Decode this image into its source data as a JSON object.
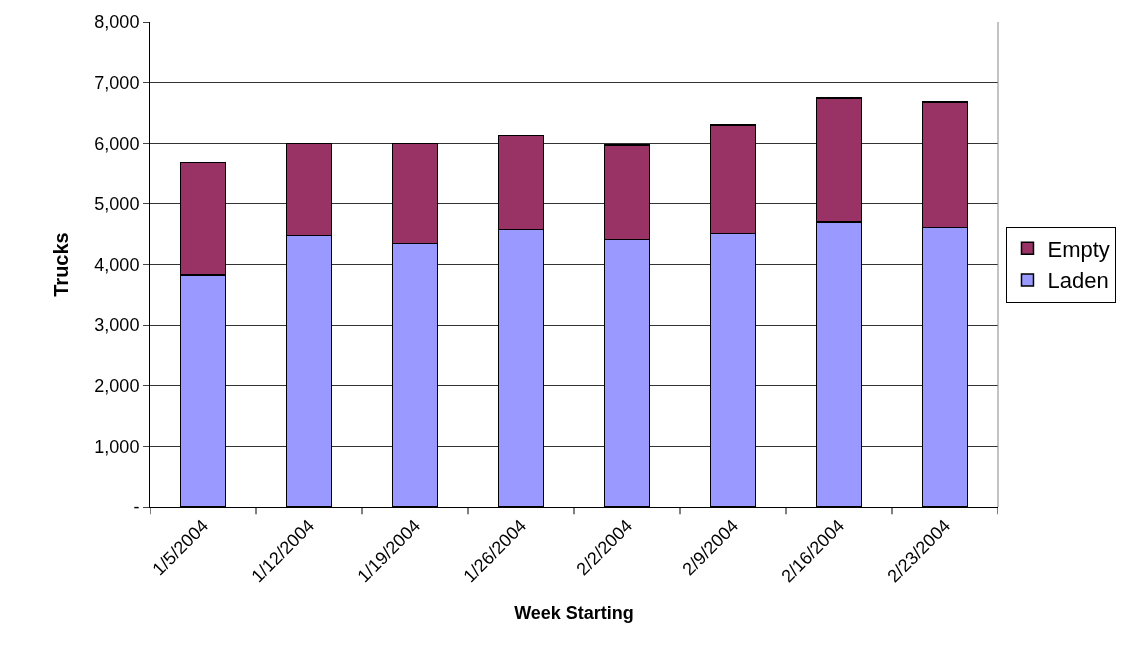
{
  "chart_data": {
    "type": "bar",
    "stacked": true,
    "xlabel": "Week Starting",
    "ylabel": "Trucks",
    "categories": [
      "1/5/2004",
      "1/12/2004",
      "1/19/2004",
      "1/26/2004",
      "2/2/2004",
      "2/9/2004",
      "2/16/2004",
      "2/23/2004"
    ],
    "series": [
      {
        "name": "Laden",
        "color": "#9999ff",
        "values": [
          3830,
          4480,
          4350,
          4580,
          4410,
          4510,
          4700,
          4610
        ]
      },
      {
        "name": "Empty",
        "color": "#993366",
        "values": [
          1850,
          1520,
          1650,
          1550,
          1560,
          1790,
          2050,
          2070
        ]
      }
    ],
    "ylim": [
      0,
      8000
    ],
    "yticks": [
      {
        "value": 0,
        "label": "-"
      },
      {
        "value": 1000,
        "label": "1,000"
      },
      {
        "value": 2000,
        "label": "2,000"
      },
      {
        "value": 3000,
        "label": "3,000"
      },
      {
        "value": 4000,
        "label": "4,000"
      },
      {
        "value": 5000,
        "label": "5,000"
      },
      {
        "value": 6000,
        "label": "6,000"
      },
      {
        "value": 7000,
        "label": "7,000"
      },
      {
        "value": 8000,
        "label": "8,000"
      }
    ],
    "grid": "y",
    "legend": "right"
  }
}
